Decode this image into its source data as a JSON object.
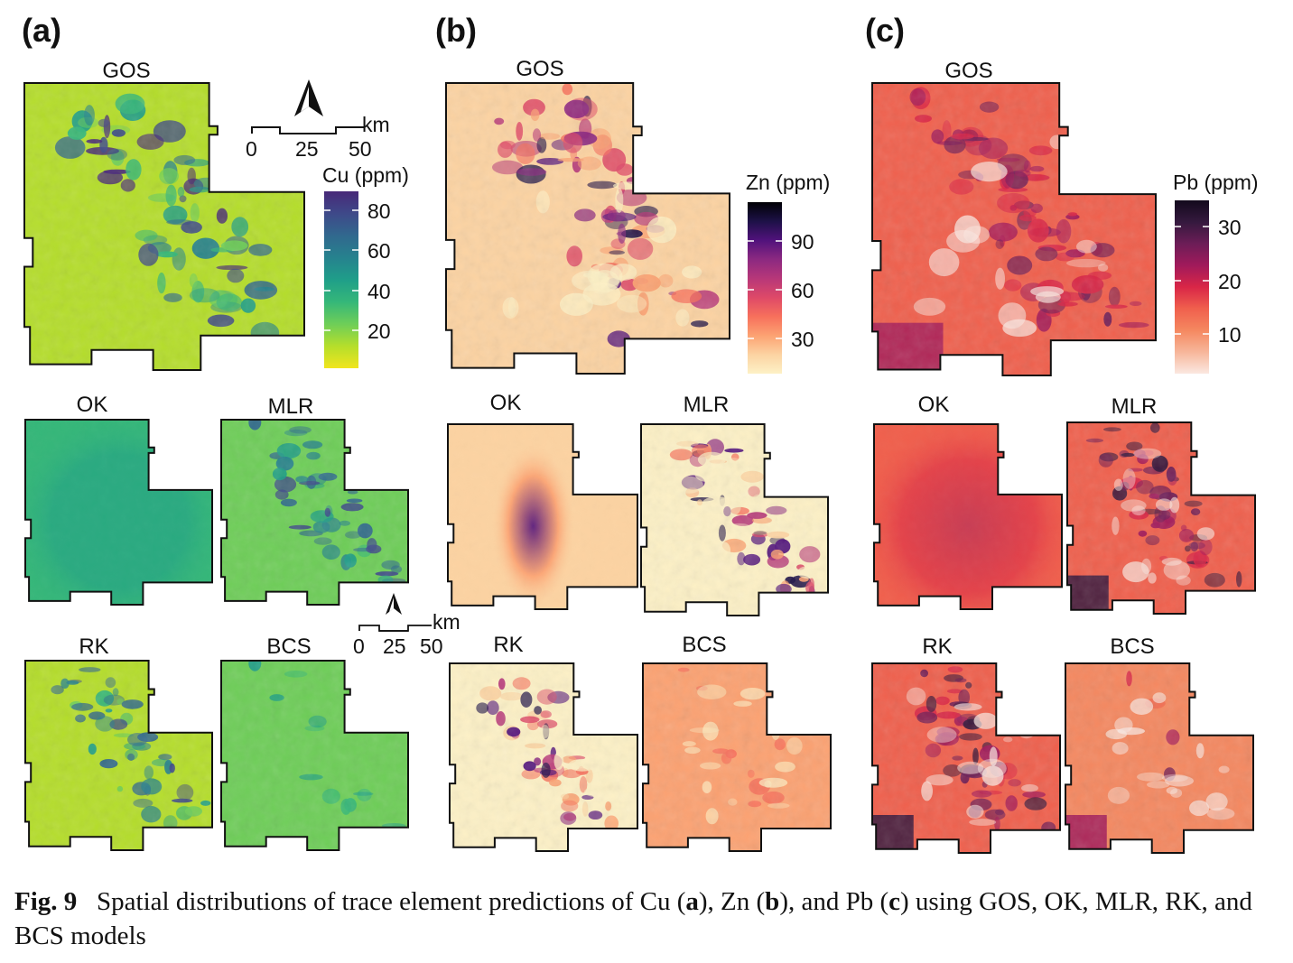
{
  "figure": {
    "panels": [
      {
        "letter": "(a)",
        "legend_title": "Cu (ppm)",
        "legend_ticks": [
          "80",
          "60",
          "40",
          "20"
        ],
        "palette": "viridis",
        "maps": [
          "GOS",
          "OK",
          "MLR",
          "RK",
          "BCS"
        ]
      },
      {
        "letter": "(b)",
        "legend_title": "Zn (ppm)",
        "legend_ticks": [
          "90",
          "60",
          "30"
        ],
        "palette": "magma",
        "maps": [
          "GOS",
          "OK",
          "MLR",
          "RK",
          "BCS"
        ]
      },
      {
        "letter": "(c)",
        "legend_title": "Pb (ppm)",
        "legend_ticks": [
          "30",
          "20",
          "10"
        ],
        "palette": "rocket",
        "maps": [
          "GOS",
          "OK",
          "MLR",
          "RK",
          "BCS"
        ]
      }
    ],
    "scalebar": {
      "unit": "km",
      "ticks": [
        "0",
        "25",
        "50"
      ]
    },
    "north_arrow_icon": "north-arrow-icon"
  },
  "caption": {
    "label": "Fig. 9",
    "text_1": "Spatial distributions of trace element predictions of Cu (",
    "a": "a",
    "text_2": "), Zn (",
    "b": "b",
    "text_3": "), and Pb (",
    "c": "c",
    "text_4": ") using GOS, OK, MLR, RK, and BCS models"
  },
  "colors": {
    "viridis": [
      "#f1e51d",
      "#b5de2b",
      "#6ece58",
      "#35b779",
      "#1f9e89",
      "#26828e",
      "#31688e",
      "#3e4989",
      "#482878"
    ],
    "magma": [
      "#fdf1c6",
      "#fcd3a2",
      "#fca272",
      "#f7705c",
      "#de4968",
      "#b73779",
      "#8c2981",
      "#51127c",
      "#1d1147",
      "#000004"
    ],
    "rocket": [
      "#fbe8e1",
      "#f7b69a",
      "#f58860",
      "#f0604d",
      "#d92647",
      "#a11a5b",
      "#6c1d57",
      "#35193e",
      "#12091c"
    ]
  }
}
